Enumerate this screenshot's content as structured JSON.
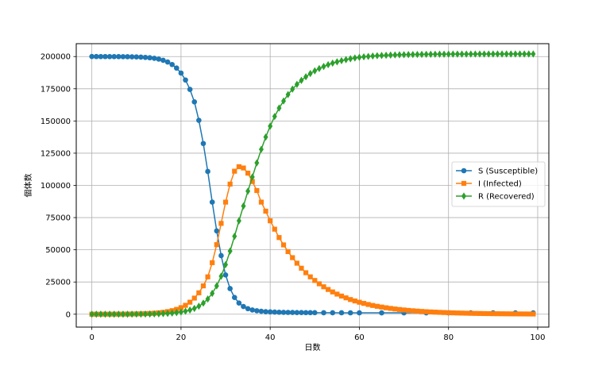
{
  "chart_data": {
    "type": "line",
    "xlabel": "日数",
    "ylabel": "個体数",
    "xlim": [
      -3.5,
      102.5
    ],
    "ylim": [
      -10000,
      210000
    ],
    "xticks": [
      0,
      20,
      40,
      60,
      80,
      100
    ],
    "yticks": [
      0,
      25000,
      50000,
      75000,
      100000,
      125000,
      150000,
      175000,
      200000
    ],
    "grid": true,
    "legend_position": "center-right",
    "series": [
      {
        "name": "S (Susceptible)",
        "color": "#1f77b4",
        "marker": "circle",
        "x": [
          0,
          1,
          2,
          3,
          4,
          5,
          6,
          7,
          8,
          9,
          10,
          11,
          12,
          13,
          14,
          15,
          16,
          17,
          18,
          19,
          20,
          21,
          22,
          23,
          24,
          25,
          26,
          27,
          28,
          29,
          30,
          31,
          32,
          33,
          34,
          35,
          36,
          37,
          38,
          39,
          40,
          41,
          42,
          43,
          44,
          45,
          46,
          47,
          48,
          49,
          50,
          52,
          54,
          56,
          58,
          60,
          65,
          70,
          75,
          80,
          85,
          90,
          95,
          99
        ],
        "y": [
          200000,
          199994,
          199988,
          199980,
          199970,
          199955,
          199935,
          199905,
          199860,
          199795,
          199700,
          199560,
          199360,
          199070,
          198640,
          198010,
          197090,
          195760,
          193830,
          191060,
          187200,
          181800,
          174500,
          164800,
          150500,
          132500,
          110800,
          87000,
          64700,
          45500,
          30500,
          19900,
          13000,
          8700,
          6000,
          4300,
          3300,
          2700,
          2300,
          2000,
          1800,
          1650,
          1550,
          1450,
          1400,
          1350,
          1300,
          1270,
          1240,
          1210,
          1190,
          1160,
          1140,
          1120,
          1100,
          1090,
          1070,
          1060,
          1050,
          1040,
          1040,
          1030,
          1030,
          1030
        ]
      },
      {
        "name": "I (Infected)",
        "color": "#ff7f0e",
        "marker": "square",
        "x": [
          0,
          1,
          2,
          3,
          4,
          5,
          6,
          7,
          8,
          9,
          10,
          11,
          12,
          13,
          14,
          15,
          16,
          17,
          18,
          19,
          20,
          21,
          22,
          23,
          24,
          25,
          26,
          27,
          28,
          29,
          30,
          31,
          32,
          33,
          34,
          35,
          36,
          37,
          38,
          39,
          40,
          41,
          42,
          43,
          44,
          45,
          46,
          47,
          48,
          49,
          50,
          51,
          52,
          53,
          54,
          55,
          56,
          57,
          58,
          59,
          60,
          61,
          62,
          63,
          64,
          65,
          66,
          67,
          68,
          69,
          70,
          71,
          72,
          73,
          74,
          75,
          76,
          77,
          78,
          79,
          80,
          81,
          82,
          83,
          84,
          85,
          86,
          87,
          88,
          89,
          90,
          91,
          92,
          93,
          94,
          95,
          96,
          97,
          98,
          99
        ],
        "y": [
          10,
          14,
          19,
          26,
          35,
          48,
          66,
          90,
          123,
          168,
          230,
          314,
          428,
          584,
          797,
          1087,
          1482,
          2020,
          2752,
          3745,
          5090,
          6900,
          9320,
          12500,
          16600,
          22000,
          29000,
          40000,
          54000,
          70500,
          87000,
          101000,
          111000,
          114500,
          113500,
          109500,
          103000,
          96000,
          87000,
          80000,
          72500,
          66000,
          59500,
          53800,
          48600,
          43900,
          39600,
          35700,
          32200,
          29000,
          26200,
          23600,
          21300,
          19200,
          17300,
          15600,
          14100,
          12700,
          11400,
          10300,
          9300,
          8400,
          7550,
          6800,
          6150,
          5550,
          5000,
          4500,
          4050,
          3650,
          3300,
          2980,
          2680,
          2420,
          2180,
          1960,
          1770,
          1600,
          1440,
          1300,
          1170,
          1055,
          950,
          860,
          775,
          700,
          630,
          570,
          513,
          463,
          417,
          376,
          339,
          306,
          276,
          249,
          224,
          202,
          182,
          164
        ]
      },
      {
        "name": "R (Recovered)",
        "color": "#2ca02c",
        "marker": "diamond",
        "x": [
          0,
          1,
          2,
          3,
          4,
          5,
          6,
          7,
          8,
          9,
          10,
          11,
          12,
          13,
          14,
          15,
          16,
          17,
          18,
          19,
          20,
          21,
          22,
          23,
          24,
          25,
          26,
          27,
          28,
          29,
          30,
          31,
          32,
          33,
          34,
          35,
          36,
          37,
          38,
          39,
          40,
          41,
          42,
          43,
          44,
          45,
          46,
          47,
          48,
          49,
          50,
          51,
          52,
          53,
          54,
          55,
          56,
          57,
          58,
          59,
          60,
          61,
          62,
          63,
          64,
          65,
          66,
          67,
          68,
          69,
          70,
          71,
          72,
          73,
          74,
          75,
          76,
          77,
          78,
          79,
          80,
          81,
          82,
          83,
          84,
          85,
          86,
          87,
          88,
          89,
          90,
          91,
          92,
          93,
          94,
          95,
          96,
          97,
          98,
          99
        ],
        "y": [
          0,
          1,
          2,
          4,
          7,
          10,
          15,
          22,
          31,
          44,
          62,
          87,
          122,
          170,
          237,
          330,
          460,
          640,
          890,
          1230,
          1700,
          2350,
          3250,
          4500,
          6200,
          8600,
          11800,
          16200,
          22000,
          29500,
          38500,
          49000,
          60500,
          72500,
          84000,
          95500,
          106500,
          117500,
          128000,
          137500,
          146000,
          153500,
          160000,
          165500,
          170500,
          174700,
          178400,
          181500,
          184300,
          186800,
          188900,
          190700,
          192300,
          193700,
          194900,
          195900,
          196800,
          197600,
          198300,
          198900,
          199400,
          199800,
          200100,
          200400,
          200650,
          200850,
          201000,
          201150,
          201250,
          201350,
          201450,
          201520,
          201580,
          201640,
          201690,
          201730,
          201770,
          201800,
          201830,
          201850,
          201870,
          201890,
          201905,
          201920,
          201930,
          201940,
          201950,
          201955,
          201960,
          201965,
          201970,
          201975,
          201978,
          201981,
          201984,
          201986,
          201988,
          201990,
          201991,
          201993
        ]
      }
    ]
  }
}
